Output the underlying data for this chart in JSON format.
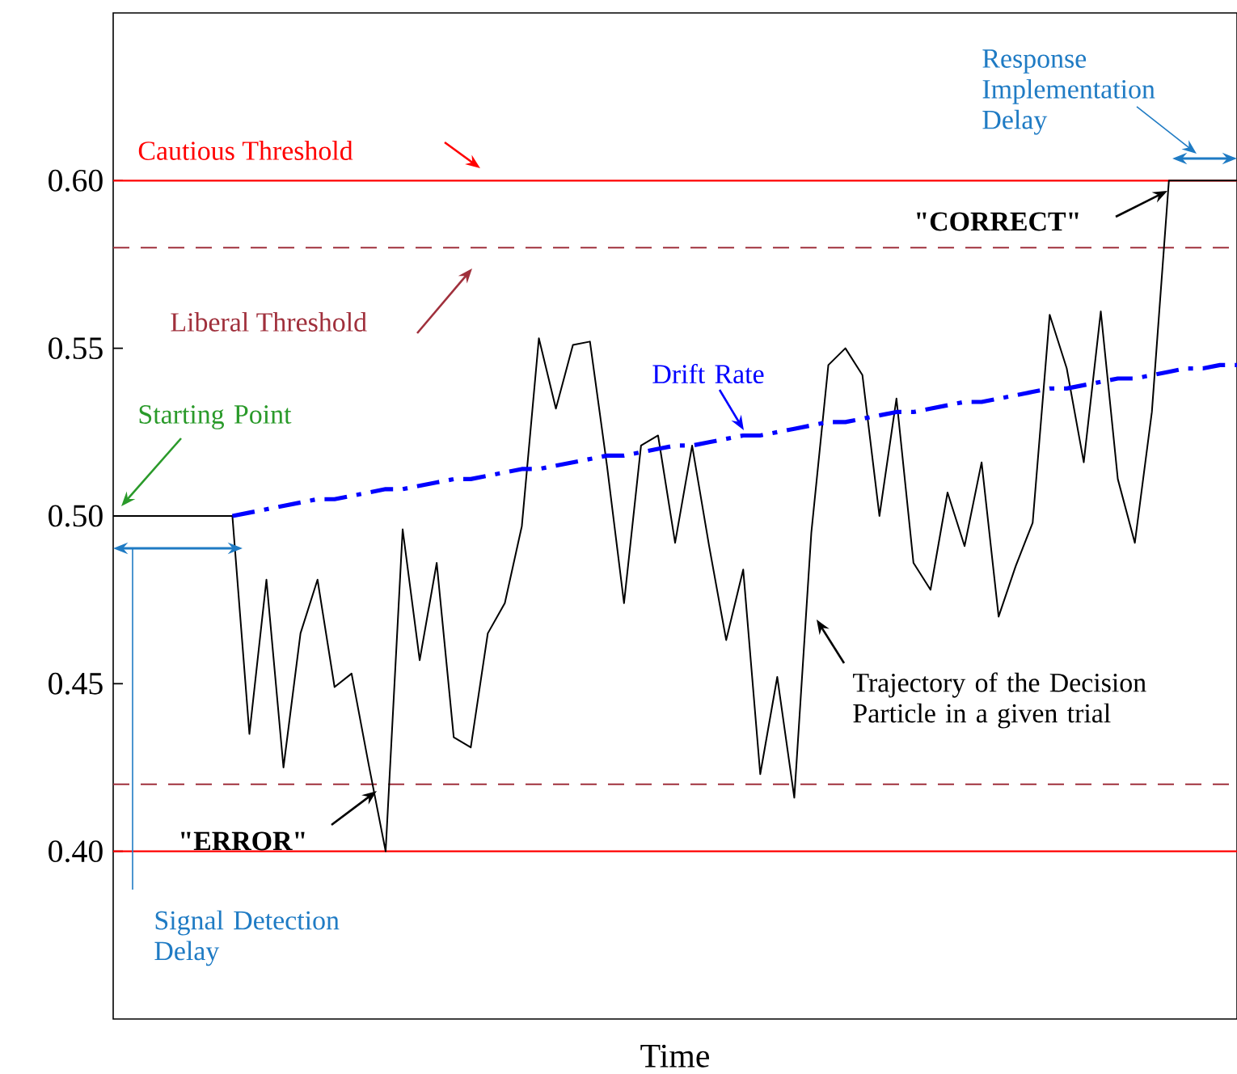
{
  "chart_data": {
    "type": "line",
    "xlabel": "Time",
    "categories": [
      null,
      null,
      null,
      null,
      null,
      null,
      null,
      null,
      null,
      null,
      null,
      null,
      null,
      null,
      null,
      null,
      null,
      null,
      null,
      null,
      null,
      null,
      null,
      null,
      null,
      null,
      null,
      null,
      null,
      null,
      null,
      null,
      null,
      null,
      null,
      null,
      null,
      null,
      null,
      null,
      null,
      null,
      null,
      null,
      null,
      null,
      null,
      null,
      null,
      null,
      null,
      null,
      null,
      null,
      null,
      null,
      null,
      null,
      null,
      null,
      null,
      null,
      null,
      null,
      null,
      null,
      null
    ],
    "ylim": [
      0.35,
      0.65
    ],
    "yticks": [
      {
        "value": 0.4,
        "label": "0.40"
      },
      {
        "value": 0.45,
        "label": "0.45"
      },
      {
        "value": 0.5,
        "label": "0.50"
      },
      {
        "value": 0.55,
        "label": "0.55"
      },
      {
        "value": 0.6,
        "label": "0.60"
      }
    ],
    "tick_labels": "y",
    "series": [
      {
        "name": "Trajectory of the Decision Particle in a given trial",
        "color": "#000000",
        "line_style": "solid",
        "values": [
          0.5,
          0.5,
          0.5,
          0.5,
          0.5,
          0.5,
          0.5,
          0.5,
          0.435,
          0.481,
          0.425,
          0.465,
          0.481,
          0.449,
          0.453,
          0.426,
          0.4,
          0.496,
          0.457,
          0.486,
          0.434,
          0.431,
          0.465,
          0.474,
          0.497,
          0.553,
          0.532,
          0.551,
          0.552,
          0.515,
          0.474,
          0.521,
          0.524,
          0.492,
          0.521,
          0.491,
          0.463,
          0.484,
          0.423,
          0.452,
          0.416,
          0.495,
          0.545,
          0.55,
          0.542,
          0.5,
          0.535,
          0.486,
          0.478,
          0.507,
          0.491,
          0.516,
          0.47,
          0.485,
          0.498,
          0.56,
          0.544,
          0.516,
          0.561,
          0.511,
          0.492,
          0.531,
          0.6,
          0.6,
          0.6,
          0.6,
          0.6
        ]
      },
      {
        "name": "Drift Rate",
        "color": "#0000ff",
        "line_style": "dashdot",
        "values": [
          null,
          null,
          null,
          null,
          null,
          null,
          null,
          0.5,
          0.501,
          0.502,
          0.503,
          0.504,
          0.505,
          0.505,
          0.506,
          0.507,
          0.508,
          0.508,
          0.509,
          0.51,
          0.511,
          0.511,
          0.512,
          0.513,
          0.514,
          0.514,
          0.515,
          0.516,
          0.517,
          0.518,
          0.518,
          0.519,
          0.52,
          0.521,
          0.521,
          0.522,
          0.523,
          0.524,
          0.524,
          0.525,
          0.526,
          0.527,
          0.528,
          0.528,
          0.529,
          0.53,
          0.531,
          0.531,
          0.532,
          0.533,
          0.534,
          0.534,
          0.535,
          0.536,
          0.537,
          0.538,
          0.538,
          0.539,
          0.54,
          0.541,
          0.541,
          0.542,
          0.543,
          0.544,
          0.544,
          0.545,
          0.545
        ]
      }
    ],
    "ref_lines": [
      {
        "axis": "y",
        "value": 0.6,
        "label": "Cautious Threshold",
        "color": "#ff0000",
        "line_style": "solid"
      },
      {
        "axis": "y",
        "value": 0.58,
        "label": "Liberal Threshold",
        "color": "#a0303c",
        "line_style": "dashed"
      },
      {
        "axis": "y",
        "value": 0.42,
        "color": "#a0303c",
        "line_style": "dashed"
      },
      {
        "axis": "y",
        "value": 0.4,
        "color": "#ff0000",
        "line_style": "solid"
      }
    ],
    "annotations": [
      "Starting Point",
      "\"ERROR\"",
      "\"CORRECT\"",
      "Signal Detection Delay",
      "Response Implementation Delay"
    ]
  }
}
